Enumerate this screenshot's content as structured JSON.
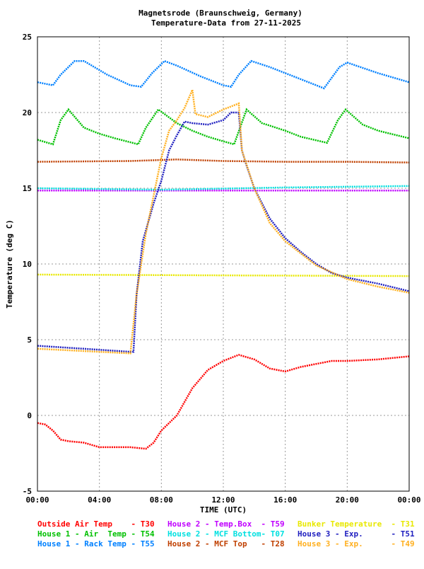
{
  "chart_data": {
    "type": "scatter",
    "title": [
      "Magnetsrode (Braunschweig, Germany)",
      "Temperature-Data from 27-11-2025"
    ],
    "xlabel": "TIME (UTC)",
    "ylabel": "Temperature (deg C)",
    "xlim": [
      0,
      24
    ],
    "ylim": [
      -5,
      25
    ],
    "xticks": [
      0,
      4,
      8,
      12,
      16,
      20,
      24
    ],
    "xtick_labels": [
      "00:00",
      "04:00",
      "08:00",
      "12:00",
      "16:00",
      "20:00",
      "00:00"
    ],
    "yticks": [
      -5,
      0,
      5,
      10,
      15,
      20,
      25
    ],
    "ytick_labels": [
      "-5",
      "0",
      "5",
      "10",
      "15",
      "20",
      "25"
    ],
    "grid": true,
    "legend_position": "bottom",
    "series": [
      {
        "name": "Outside Air Temp    - T30",
        "color": "#ff0000",
        "x": [
          0,
          0.5,
          1,
          1.5,
          2,
          3,
          4,
          5,
          6,
          7,
          7.5,
          8,
          9,
          10,
          11,
          12,
          13,
          14,
          15,
          16,
          17,
          18,
          19,
          20,
          22,
          24
        ],
        "y": [
          -0.5,
          -0.6,
          -1.0,
          -1.6,
          -1.7,
          -1.8,
          -2.1,
          -2.1,
          -2.1,
          -2.2,
          -1.8,
          -1.0,
          0,
          1.8,
          3.0,
          3.6,
          4.0,
          3.7,
          3.1,
          2.9,
          3.2,
          3.4,
          3.6,
          3.6,
          3.7,
          3.9
        ]
      },
      {
        "name": "House 1 - Air  Temp - T54",
        "color": "#00c000",
        "x": [
          0,
          1,
          1.5,
          2,
          3,
          4,
          5,
          6.5,
          7,
          7.8,
          9,
          10,
          11,
          12,
          12.7,
          13.5,
          14.5,
          16,
          17,
          18.7,
          19.4,
          19.9,
          21,
          22,
          24
        ],
        "y": [
          18.2,
          17.9,
          19.5,
          20.2,
          19.0,
          18.6,
          18.3,
          17.9,
          19.0,
          20.2,
          19.3,
          18.8,
          18.4,
          18.1,
          17.9,
          20.2,
          19.3,
          18.8,
          18.4,
          18.0,
          19.5,
          20.2,
          19.2,
          18.8,
          18.3
        ]
      },
      {
        "name": "House 1 - Rack Temp - T55",
        "color": "#0080ff",
        "x": [
          0,
          1,
          1.5,
          2.4,
          3,
          4.5,
          6,
          6.7,
          7.4,
          8.2,
          9,
          10.5,
          12,
          12.5,
          13,
          13.8,
          15,
          17,
          18.5,
          19.5,
          20,
          22,
          24
        ],
        "y": [
          22.0,
          21.8,
          22.5,
          23.4,
          23.4,
          22.5,
          21.8,
          21.7,
          22.6,
          23.4,
          23.1,
          22.4,
          21.8,
          21.7,
          22.5,
          23.4,
          23.0,
          22.2,
          21.6,
          23.0,
          23.3,
          22.6,
          22.0
        ]
      },
      {
        "name": "House 2 - Temp.Box  - T59",
        "color": "#c000ff",
        "x": [
          0,
          12,
          24
        ],
        "y": [
          14.85,
          14.85,
          14.85
        ]
      },
      {
        "name": "House 2 - MCF Bottom- T07",
        "color": "#00e0e0",
        "x": [
          0,
          8,
          16,
          24
        ],
        "y": [
          15.0,
          14.9,
          15.05,
          15.15
        ]
      },
      {
        "name": "House 2 - MCF Top   - T28",
        "color": "#c04000",
        "x": [
          0,
          6,
          9,
          12,
          16,
          20,
          24
        ],
        "y": [
          16.75,
          16.8,
          16.9,
          16.8,
          16.75,
          16.75,
          16.7
        ]
      },
      {
        "name": "Bunker Temperature  - T31",
        "color": "#e8e800",
        "x": [
          0,
          12,
          24
        ],
        "y": [
          9.3,
          9.25,
          9.2
        ]
      },
      {
        "name": "House 3 - Exp.      - T51",
        "color": "#2020c0",
        "x": [
          0,
          3,
          6,
          6.2,
          6.4,
          6.8,
          7.5,
          8,
          8.5,
          9,
          9.5,
          10,
          11,
          12,
          12.5,
          13,
          13.2,
          13.5,
          14,
          15,
          16,
          17,
          18,
          19,
          20,
          22,
          24
        ],
        "y": [
          4.6,
          4.4,
          4.2,
          4.2,
          8,
          11.5,
          14,
          15.5,
          17.5,
          18.5,
          19.4,
          19.3,
          19.2,
          19.5,
          20.0,
          20.0,
          17.5,
          16.5,
          15,
          13,
          11.7,
          10.8,
          10.0,
          9.4,
          9.1,
          8.7,
          8.2
        ]
      },
      {
        "name": "House 3 - Exp.      - T49",
        "color": "#ffb020",
        "x": [
          0,
          6,
          6.4,
          7,
          8,
          8.5,
          9,
          9.5,
          10,
          10.2,
          11,
          12,
          13,
          13.2,
          14,
          15,
          16,
          18,
          20,
          22,
          24
        ],
        "y": [
          4.4,
          4.1,
          8,
          12,
          17,
          18.8,
          19.5,
          20.3,
          21.5,
          19.9,
          19.7,
          20.2,
          20.6,
          17.5,
          15,
          12.7,
          11.5,
          9.9,
          9.0,
          8.5,
          8.1
        ]
      }
    ]
  }
}
